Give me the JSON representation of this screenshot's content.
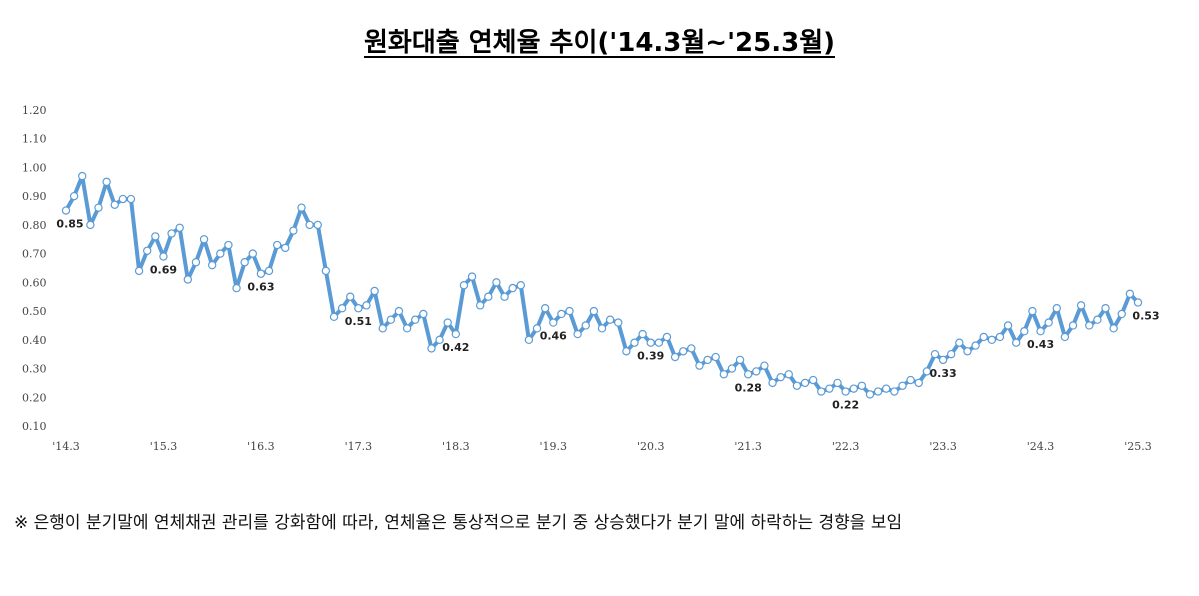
{
  "title": "원화대출 연체율 추이('14.3월~'25.3월)",
  "note": "※ 은행이 분기말에 연체채권 관리를 강화함에 따라, 연체율은 통상적으로 분기 중 상승했다가 분기 말에 하락하는 경향을 보임",
  "colors": {
    "line": "#5b9bd5",
    "marker_fill": "#ffffff",
    "marker_stroke": "#5b9bd5"
  },
  "chart_data": {
    "type": "line",
    "title": "원화대출 연체율 추이('14.3월~'25.3월)",
    "xlabel": "",
    "ylabel": "",
    "ylim": [
      0.1,
      1.2
    ],
    "y_ticks": [
      "0.10",
      "0.20",
      "0.30",
      "0.40",
      "0.50",
      "0.60",
      "0.70",
      "0.80",
      "0.90",
      "1.00",
      "1.10",
      "1.20"
    ],
    "x_ticks": [
      "'14.3",
      "'15.3",
      "'16.3",
      "'17.3",
      "'18.3",
      "'19.3",
      "'20.3",
      "'21.3",
      "'22.3",
      "'23.3",
      "'24.3",
      "'25.3"
    ],
    "grid": false,
    "legend": "none",
    "series": [
      {
        "name": "",
        "x_start": "2014-03",
        "frequency": "monthly",
        "values": [
          0.85,
          0.9,
          0.97,
          0.8,
          0.86,
          0.95,
          0.87,
          0.89,
          0.89,
          0.64,
          0.71,
          0.76,
          0.69,
          0.77,
          0.79,
          0.61,
          0.67,
          0.75,
          0.66,
          0.7,
          0.73,
          0.58,
          0.67,
          0.7,
          0.63,
          0.64,
          0.73,
          0.72,
          0.78,
          0.86,
          0.8,
          0.8,
          0.64,
          0.48,
          0.51,
          0.55,
          0.51,
          0.52,
          0.57,
          0.44,
          0.47,
          0.5,
          0.44,
          0.47,
          0.49,
          0.37,
          0.4,
          0.46,
          0.42,
          0.59,
          0.62,
          0.52,
          0.55,
          0.6,
          0.55,
          0.58,
          0.59,
          0.4,
          0.44,
          0.51,
          0.46,
          0.49,
          0.5,
          0.42,
          0.45,
          0.5,
          0.44,
          0.47,
          0.46,
          0.36,
          0.39,
          0.42,
          0.39,
          0.39,
          0.41,
          0.34,
          0.36,
          0.37,
          0.31,
          0.33,
          0.34,
          0.28,
          0.3,
          0.33,
          0.28,
          0.29,
          0.31,
          0.25,
          0.27,
          0.28,
          0.24,
          0.25,
          0.26,
          0.22,
          0.23,
          0.25,
          0.22,
          0.23,
          0.24,
          0.21,
          0.22,
          0.23,
          0.22,
          0.24,
          0.26,
          0.25,
          0.29,
          0.35,
          0.33,
          0.35,
          0.39,
          0.36,
          0.38,
          0.41,
          0.4,
          0.41,
          0.45,
          0.39,
          0.43,
          0.5,
          0.43,
          0.46,
          0.51,
          0.41,
          0.45,
          0.52,
          0.45,
          0.47,
          0.51,
          0.44,
          0.49,
          0.56,
          0.53
        ]
      }
    ],
    "data_labels": [
      {
        "text": "0.85",
        "index": 0
      },
      {
        "text": "0.69",
        "index": 12
      },
      {
        "text": "0.63",
        "index": 24
      },
      {
        "text": "0.51",
        "index": 36
      },
      {
        "text": "0.42",
        "index": 48
      },
      {
        "text": "0.46",
        "index": 60
      },
      {
        "text": "0.39",
        "index": 72
      },
      {
        "text": "0.28",
        "index": 84
      },
      {
        "text": "0.22",
        "index": 96
      },
      {
        "text": "0.33",
        "index": 108
      },
      {
        "text": "0.43",
        "index": 120
      },
      {
        "text": "0.53",
        "index": 132
      }
    ]
  }
}
